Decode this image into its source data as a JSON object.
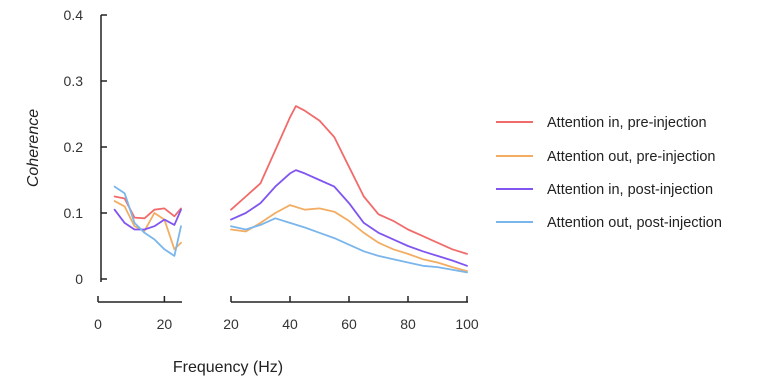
{
  "chart_data": {
    "type": "line",
    "xlabel": "Frequency (Hz)",
    "ylabel": "Coherence",
    "ylim": [
      0,
      0.4
    ],
    "y_ticks": [
      "0",
      "0.1",
      "0.2",
      "0.3",
      "0.4"
    ],
    "panels": [
      {
        "name": "low",
        "xlim": [
          0,
          25
        ],
        "x_ticks": [
          {
            "v": 0,
            "label": "0"
          },
          {
            "v": 20,
            "label": "20"
          }
        ]
      },
      {
        "name": "high",
        "xlim": [
          20,
          100
        ],
        "x_ticks": [
          {
            "v": 20,
            "label": "20"
          },
          {
            "v": 40,
            "label": "40"
          },
          {
            "v": 60,
            "label": "60"
          },
          {
            "v": 80,
            "label": "80"
          },
          {
            "v": 100,
            "label": "100"
          }
        ]
      }
    ],
    "legend_position": "right",
    "series": [
      {
        "name": "Attention in, pre-injection",
        "color": "#f26b6b",
        "low": {
          "x": [
            5,
            8,
            11,
            14,
            17,
            20,
            23,
            25
          ],
          "y": [
            0.125,
            0.122,
            0.093,
            0.092,
            0.105,
            0.107,
            0.095,
            0.107
          ]
        },
        "high": {
          "x": [
            20,
            25,
            30,
            35,
            40,
            42,
            45,
            50,
            55,
            60,
            65,
            70,
            75,
            80,
            85,
            90,
            95,
            100
          ],
          "y": [
            0.105,
            0.125,
            0.145,
            0.195,
            0.245,
            0.262,
            0.255,
            0.24,
            0.215,
            0.17,
            0.125,
            0.098,
            0.088,
            0.075,
            0.065,
            0.055,
            0.045,
            0.038
          ]
        }
      },
      {
        "name": "Attention out, pre-injection",
        "color": "#f3ad62",
        "low": {
          "x": [
            5,
            8,
            11,
            14,
            17,
            20,
            23,
            25
          ],
          "y": [
            0.118,
            0.11,
            0.08,
            0.073,
            0.1,
            0.09,
            0.045,
            0.055
          ]
        },
        "high": {
          "x": [
            20,
            25,
            30,
            35,
            40,
            45,
            50,
            55,
            60,
            65,
            70,
            75,
            80,
            85,
            90,
            95,
            100
          ],
          "y": [
            0.075,
            0.072,
            0.085,
            0.1,
            0.112,
            0.105,
            0.107,
            0.102,
            0.088,
            0.07,
            0.055,
            0.045,
            0.038,
            0.03,
            0.025,
            0.018,
            0.012
          ]
        }
      },
      {
        "name": "Attention in, post-injection",
        "color": "#8055f0",
        "low": {
          "x": [
            5,
            8,
            11,
            14,
            17,
            20,
            23,
            25
          ],
          "y": [
            0.105,
            0.085,
            0.075,
            0.075,
            0.08,
            0.09,
            0.082,
            0.105
          ]
        },
        "high": {
          "x": [
            20,
            25,
            30,
            35,
            40,
            42,
            45,
            50,
            55,
            60,
            65,
            70,
            75,
            80,
            85,
            90,
            95,
            100
          ],
          "y": [
            0.09,
            0.1,
            0.115,
            0.14,
            0.16,
            0.165,
            0.16,
            0.15,
            0.14,
            0.115,
            0.085,
            0.07,
            0.06,
            0.05,
            0.042,
            0.035,
            0.028,
            0.02
          ]
        }
      },
      {
        "name": "Attention out, post-injection",
        "color": "#7ab6ec",
        "low": {
          "x": [
            5,
            8,
            11,
            14,
            17,
            20,
            23,
            25
          ],
          "y": [
            0.14,
            0.13,
            0.085,
            0.07,
            0.06,
            0.045,
            0.035,
            0.08
          ]
        },
        "high": {
          "x": [
            20,
            25,
            30,
            35,
            40,
            45,
            50,
            55,
            60,
            65,
            70,
            75,
            80,
            85,
            90,
            95,
            100
          ],
          "y": [
            0.08,
            0.075,
            0.082,
            0.092,
            0.085,
            0.078,
            0.07,
            0.062,
            0.052,
            0.042,
            0.035,
            0.03,
            0.025,
            0.02,
            0.018,
            0.014,
            0.01
          ]
        }
      }
    ]
  }
}
